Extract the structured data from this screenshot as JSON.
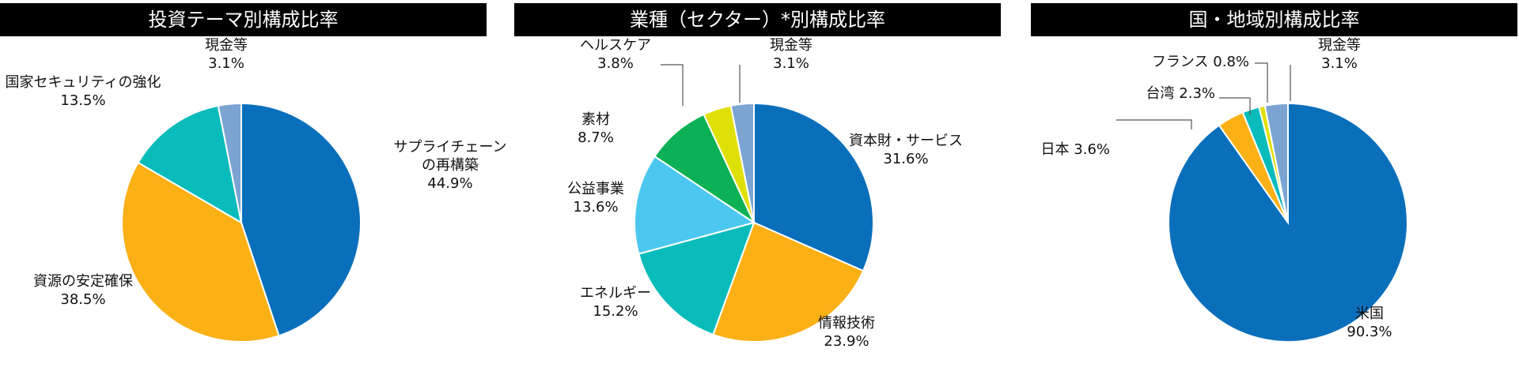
{
  "chart_data": [
    {
      "type": "pie",
      "title": "投資テーマ別構成比率",
      "slices": [
        {
          "label": [
            "サプライチェーン",
            "の再構築"
          ],
          "value_label": "44.9%",
          "value": 44.9,
          "color": "#0a6fbb"
        },
        {
          "label": [
            "資源の安定確保"
          ],
          "value_label": "38.5%",
          "value": 38.5,
          "color": "#fbb016"
        },
        {
          "label": [
            "国家セキュリティの強化"
          ],
          "value_label": "13.5%",
          "value": 13.5,
          "color": "#09bcbb"
        },
        {
          "label": [
            "現金等"
          ],
          "value_label": "3.1%",
          "value": 3.1,
          "color": "#7ba4d2"
        }
      ]
    },
    {
      "type": "pie",
      "title": "業種（セクター）*別構成比率",
      "slices": [
        {
          "label": [
            "資本財・サービス"
          ],
          "value_label": "31.6%",
          "value": 31.6,
          "color": "#0a6fbb"
        },
        {
          "label": [
            "情報技術"
          ],
          "value_label": "23.9%",
          "value": 23.9,
          "color": "#fbb016"
        },
        {
          "label": [
            "エネルギー"
          ],
          "value_label": "15.2%",
          "value": 15.2,
          "color": "#09bcbb"
        },
        {
          "label": [
            "公益事業"
          ],
          "value_label": "13.6%",
          "value": 13.6,
          "color": "#4cc8f0"
        },
        {
          "label": [
            "素材"
          ],
          "value_label": "8.7%",
          "value": 8.7,
          "color": "#0bb154"
        },
        {
          "label": [
            "ヘルスケア"
          ],
          "value_label": "3.8%",
          "value": 3.8,
          "color": "#e0e009"
        },
        {
          "label": [
            "現金等"
          ],
          "value_label": "3.1%",
          "value": 3.1,
          "color": "#7ba4d2"
        }
      ]
    },
    {
      "type": "pie",
      "title": "国・地域別構成比率",
      "slices": [
        {
          "label": [
            "米国"
          ],
          "value_label": "90.3%",
          "value": 90.3,
          "color": "#0a6fbb"
        },
        {
          "label": [
            "日本"
          ],
          "value_label": "3.6%",
          "value": 3.6,
          "color": "#fbb016"
        },
        {
          "label": [
            "台湾"
          ],
          "value_label": "2.3%",
          "value": 2.3,
          "color": "#09bcbb"
        },
        {
          "label": [
            "フランス"
          ],
          "value_label": "0.8%",
          "value": 0.8,
          "color": "#e0e009"
        },
        {
          "label": [
            "現金等"
          ],
          "value_label": "3.1%",
          "value": 3.1,
          "color": "#7ba4d2"
        }
      ]
    }
  ]
}
